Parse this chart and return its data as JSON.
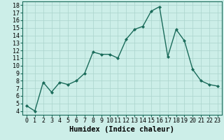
{
  "x": [
    0,
    1,
    2,
    3,
    4,
    5,
    6,
    7,
    8,
    9,
    10,
    11,
    12,
    13,
    14,
    15,
    16,
    17,
    18,
    19,
    20,
    21,
    22,
    23
  ],
  "y": [
    4.7,
    4.0,
    7.8,
    6.5,
    7.8,
    7.5,
    8.0,
    9.0,
    11.8,
    11.5,
    11.5,
    11.0,
    13.5,
    14.8,
    15.2,
    17.2,
    17.8,
    11.2,
    14.8,
    13.3,
    9.5,
    8.0,
    7.5,
    7.3
  ],
  "line_color": "#1a6b5a",
  "marker": "D",
  "marker_size": 2,
  "bg_color": "#cceee8",
  "grid_color": "#aad4cc",
  "xlabel": "Humidex (Indice chaleur)",
  "ylim": [
    3.5,
    18.5
  ],
  "xlim": [
    -0.5,
    23.5
  ],
  "yticks": [
    4,
    5,
    6,
    7,
    8,
    9,
    10,
    11,
    12,
    13,
    14,
    15,
    16,
    17,
    18
  ],
  "xticks": [
    0,
    1,
    2,
    3,
    4,
    5,
    6,
    7,
    8,
    9,
    10,
    11,
    12,
    13,
    14,
    15,
    16,
    17,
    18,
    19,
    20,
    21,
    22,
    23
  ],
  "tick_fontsize": 6,
  "label_fontsize": 7.5,
  "linewidth": 1.0
}
